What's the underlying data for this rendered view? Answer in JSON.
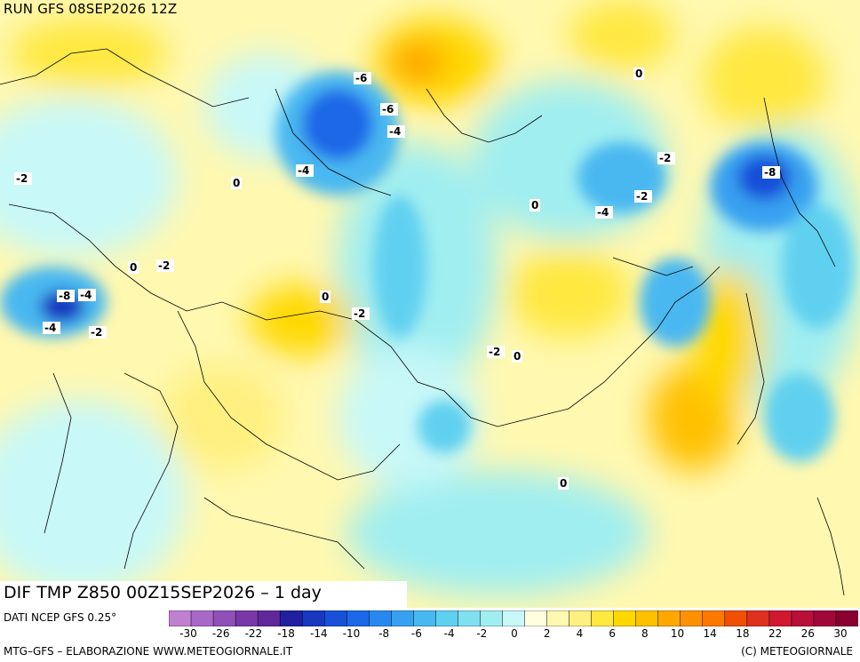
{
  "header": {
    "run": "RUN GFS 08SEP2026 12Z"
  },
  "footer": {
    "title": "DIF TMP Z850 00Z15SEP2026 – 1 day",
    "source": "DATI NCEP GFS 0.25°",
    "credit": "MTG–GFS – ELABORAZIONE WWW.METEOGIORNALE.IT",
    "copyright": "(C) METEOGIORNALE"
  },
  "colorbar": {
    "colors": [
      "#c080d0",
      "#a868c8",
      "#9050b8",
      "#7838a8",
      "#602898",
      "#2020a0",
      "#1838c0",
      "#1850d8",
      "#1c68e8",
      "#2888f0",
      "#38a0f0",
      "#48b8f0",
      "#60d0f0",
      "#80e0f0",
      "#a0eef0",
      "#c8f8f8",
      "#ffffe0",
      "#fff8b0",
      "#fff080",
      "#ffe840",
      "#ffd800",
      "#ffc000",
      "#ffa800",
      "#ff9000",
      "#ff7800",
      "#f05000",
      "#e03020",
      "#d01830",
      "#b81038",
      "#a00838",
      "#880030"
    ],
    "ticks": [
      "-30",
      "-26",
      "-22",
      "-18",
      "-14",
      "-10",
      "-8",
      "-6",
      "-4",
      "-2",
      "0",
      "2",
      "4",
      "6",
      "8",
      "10",
      "14",
      "18",
      "22",
      "26",
      "30"
    ]
  },
  "contour_labels": [
    "-2",
    "0",
    "-4",
    "-6",
    "-8",
    "0",
    "-2",
    "0",
    "-2",
    "-4",
    "-6",
    "0",
    "-2",
    "0",
    "-2",
    "0",
    "-4",
    "-2",
    "0",
    "-8",
    "-4",
    "-4",
    "-2"
  ]
}
